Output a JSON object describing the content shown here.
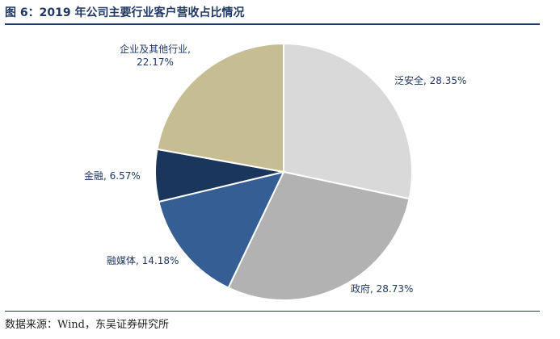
{
  "figure": {
    "title": "图 6：2019 年公司主要行业客户营收占比情况",
    "source": "数据来源：Wind，东吴证券研究所"
  },
  "chart_data": {
    "type": "pie",
    "title": "",
    "slices": [
      {
        "label": "泛安全",
        "value": 28.35,
        "display": "泛安全, 28.35%",
        "color": "#d9d9d9"
      },
      {
        "label": "政府",
        "value": 28.73,
        "display": "政府, 28.73%",
        "color": "#b2b2b2"
      },
      {
        "label": "融媒体",
        "value": 14.18,
        "display": "融媒体, 14.18%",
        "color": "#355f94"
      },
      {
        "label": "金融",
        "value": 6.57,
        "display": "金融, 6.57%",
        "color": "#1b365d"
      },
      {
        "label": "企业及其他行业",
        "value": 22.17,
        "display_lines": [
          "企业及其他行业,",
          "22.17%"
        ],
        "color": "#c6bd93"
      }
    ],
    "start": "12 o'clock",
    "direction": "clockwise",
    "legend": "none"
  }
}
